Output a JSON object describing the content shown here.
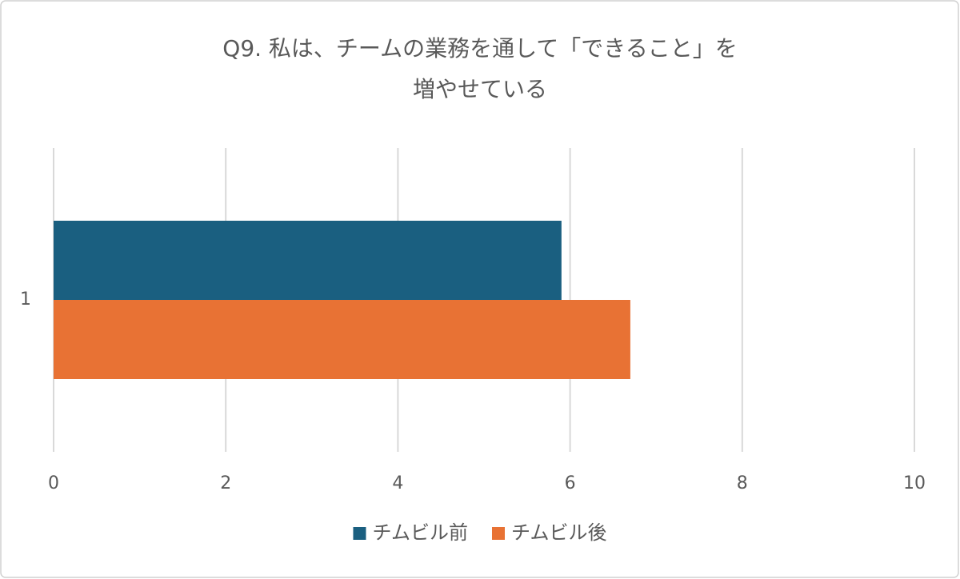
{
  "chart_data": {
    "type": "hbar",
    "title": [
      "Q9. 私は、チームの業務を通して「できること」を",
      "増やせている"
    ],
    "categories": [
      "1"
    ],
    "series": [
      {
        "name": "チムビル前",
        "color": "#1a5f80",
        "values": [
          5.9
        ]
      },
      {
        "name": "チムビル後",
        "color": "#e87234",
        "values": [
          6.7
        ]
      }
    ],
    "xlim": [
      0,
      10
    ],
    "xticks": [
      0,
      2,
      4,
      6,
      8,
      10
    ],
    "grid": true,
    "legend": "bottom"
  }
}
